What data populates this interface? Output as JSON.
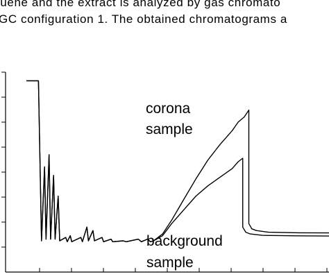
{
  "document": {
    "lines": [
      "luene and the extract is analyzed by gas chromato",
      "GC configuration 1. The obtained chromatograms a"
    ]
  },
  "chart_data": {
    "type": "line",
    "title": "",
    "xlabel": "",
    "ylabel": "",
    "xlim": [
      0,
      100
    ],
    "ylim": [
      0,
      100
    ],
    "grid": false,
    "legend": "none",
    "annotations": [
      {
        "lines": [
          "corona",
          "sample"
        ],
        "series": "corona sample"
      },
      {
        "lines": [
          "background",
          "sample"
        ],
        "series": "background sample"
      }
    ],
    "series": [
      {
        "name": "corona sample",
        "color": "#000000",
        "points": [
          [
            0,
            95
          ],
          [
            3,
            95
          ],
          [
            4,
            95
          ],
          [
            5,
            2
          ],
          [
            6,
            45
          ],
          [
            6.5,
            3
          ],
          [
            7.5,
            52
          ],
          [
            8,
            3
          ],
          [
            9,
            40
          ],
          [
            9.5,
            3
          ],
          [
            10.5,
            28
          ],
          [
            11,
            2
          ],
          [
            13,
            4
          ],
          [
            13.5,
            1.5
          ],
          [
            14.5,
            5
          ],
          [
            15,
            1.5
          ],
          [
            18,
            4
          ],
          [
            18.5,
            1.5
          ],
          [
            20,
            10
          ],
          [
            20.5,
            2
          ],
          [
            22,
            8
          ],
          [
            22.5,
            2
          ],
          [
            25,
            4
          ],
          [
            25.5,
            1.5
          ],
          [
            28,
            3
          ],
          [
            28.5,
            1.5
          ],
          [
            32,
            2
          ],
          [
            33,
            1.5
          ],
          [
            37,
            3
          ],
          [
            38,
            1.5
          ],
          [
            40,
            3
          ],
          [
            41,
            1.5
          ],
          [
            42,
            2
          ],
          [
            45,
            6
          ],
          [
            48,
            14
          ],
          [
            52,
            26
          ],
          [
            56,
            38
          ],
          [
            60,
            49
          ],
          [
            64,
            58
          ],
          [
            68,
            66
          ],
          [
            70,
            71
          ],
          [
            72,
            74
          ],
          [
            73.5,
            78
          ],
          [
            73.5,
            12
          ],
          [
            74.5,
            9
          ],
          [
            76,
            8
          ],
          [
            80,
            7
          ],
          [
            90,
            6.7
          ],
          [
            100,
            6.6
          ]
        ]
      },
      {
        "name": "background sample",
        "color": "#000000",
        "points": [
          [
            0,
            95
          ],
          [
            3,
            95
          ],
          [
            4,
            95
          ],
          [
            5,
            2
          ],
          [
            6,
            45
          ],
          [
            6.5,
            3
          ],
          [
            7.5,
            52
          ],
          [
            8,
            3
          ],
          [
            9,
            40
          ],
          [
            9.5,
            3
          ],
          [
            10.5,
            28
          ],
          [
            11,
            2
          ],
          [
            13,
            4
          ],
          [
            13.5,
            1.5
          ],
          [
            14.5,
            5
          ],
          [
            15,
            1.5
          ],
          [
            18,
            4
          ],
          [
            18.5,
            1.5
          ],
          [
            20,
            10
          ],
          [
            20.5,
            2
          ],
          [
            22,
            8
          ],
          [
            22.5,
            2
          ],
          [
            25,
            4
          ],
          [
            25.5,
            1.5
          ],
          [
            28,
            3
          ],
          [
            28.5,
            1.5
          ],
          [
            32,
            2
          ],
          [
            33,
            1.5
          ],
          [
            37,
            3
          ],
          [
            38,
            1.5
          ],
          [
            40,
            3
          ],
          [
            41,
            1.5
          ],
          [
            42,
            2
          ],
          [
            45,
            5
          ],
          [
            48,
            12
          ],
          [
            52,
            20
          ],
          [
            56,
            28
          ],
          [
            60,
            34
          ],
          [
            64,
            39
          ],
          [
            68,
            44
          ],
          [
            70,
            48
          ],
          [
            71.5,
            50
          ],
          [
            71.5,
            10
          ],
          [
            72.5,
            7
          ],
          [
            74,
            6
          ],
          [
            78,
            5.2
          ],
          [
            90,
            4.9
          ],
          [
            100,
            4.8
          ]
        ]
      }
    ]
  }
}
